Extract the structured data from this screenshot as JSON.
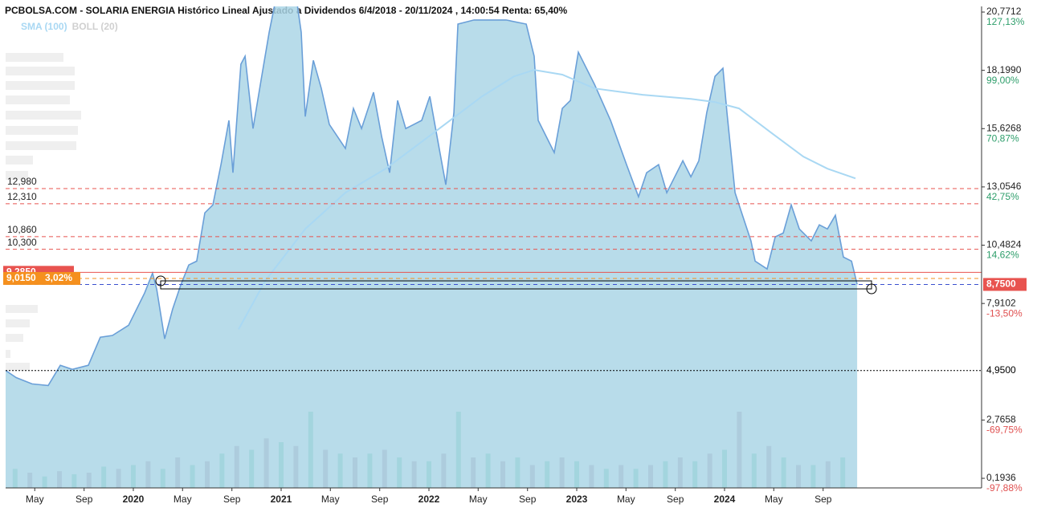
{
  "chart_data": {
    "type": "area",
    "title": "PCBOLSA.COM - SOLARIA ENERGIA Histórico Lineal Ajustado a Dividendos 6/4/2018 - 20/11/2024 , 14:00:54 Renta: 65,40%",
    "xlim": [
      2019.136,
      2025.739
    ],
    "xticks": [
      {
        "value": 2019.333,
        "label": "May"
      },
      {
        "value": 2019.667,
        "label": "Sep"
      },
      2020,
      {
        "value": 2020.333,
        "label": "May"
      },
      {
        "value": 2020.667,
        "label": "Sep"
      },
      2021,
      {
        "value": 2021.333,
        "label": "May"
      },
      {
        "value": 2021.667,
        "label": "Sep"
      },
      2022,
      {
        "value": 2022.333,
        "label": "May"
      },
      {
        "value": 2022.667,
        "label": "Sep"
      },
      2023,
      {
        "value": 2023.333,
        "label": "May"
      },
      {
        "value": 2023.667,
        "label": "Sep"
      },
      2024,
      {
        "value": 2024.333,
        "label": "May"
      },
      {
        "value": 2024.667,
        "label": "Sep"
      }
    ],
    "ylim": [
      -0.23,
      21.02
    ],
    "yticks": [
      {
        "value": 20.7712,
        "label": "20,7712"
      },
      {
        "value": 18.199,
        "label": "18,1990"
      },
      {
        "value": 15.6268,
        "label": "15,6268"
      },
      {
        "value": 13.0546,
        "label": "13,0546"
      },
      {
        "value": 10.4824,
        "label": "10,4824"
      },
      {
        "value": 7.9102,
        "label": "7,9102"
      },
      {
        "value": 2.7658,
        "label": "2,7658"
      },
      {
        "value": 0.1936,
        "label": "0,1936"
      }
    ],
    "y2lim": [
      -102.52,
      129.85
    ],
    "y2ticks": [
      {
        "value": 127.13,
        "label": "127,13%"
      },
      {
        "value": 99.0,
        "label": "99,00%"
      },
      {
        "value": 70.87,
        "label": "70,87%"
      },
      {
        "value": 42.75,
        "label": "42,75%"
      },
      {
        "value": 14.62,
        "label": "14,62%"
      },
      {
        "value": -13.5,
        "label": "-13,50%"
      },
      {
        "value": -69.75,
        "label": "-69,75%"
      },
      {
        "value": -97.88,
        "label": "-97,88%"
      }
    ],
    "series": [
      {
        "color": "#6a9fd8",
        "fill": "#acd6e6",
        "x": [
          2019.136,
          2019.207,
          2019.315,
          2019.424,
          2019.506,
          2019.587,
          2019.696,
          2019.777,
          2019.859,
          2019.968,
          2020.076,
          2020.13,
          2020.158,
          2020.212,
          2020.266,
          2020.321,
          2020.375,
          2020.429,
          2020.484,
          2020.538,
          2020.593,
          2020.647,
          2020.674,
          2020.728,
          2020.756,
          2020.81,
          2020.864,
          2020.919,
          2020.957,
          2021.109,
          2021.136,
          2021.163,
          2021.218,
          2021.272,
          2021.326,
          2021.435,
          2021.489,
          2021.544,
          2021.625,
          2021.68,
          2021.734,
          2021.788,
          2021.843,
          2021.951,
          2022.006,
          2022.06,
          2022.114,
          2022.169,
          2022.196,
          2022.305,
          2022.413,
          2022.522,
          2022.658,
          2022.712,
          2022.739,
          2022.848,
          2022.902,
          2022.957,
          2023.011,
          2023.12,
          2023.229,
          2023.337,
          2023.418,
          2023.473,
          2023.554,
          2023.609,
          2023.718,
          2023.772,
          2023.826,
          2023.88,
          2023.935,
          2023.989,
          2024.016,
          2024.071,
          2024.125,
          2024.179,
          2024.207,
          2024.288,
          2024.343,
          2024.397,
          2024.451,
          2024.506,
          2024.587,
          2024.641,
          2024.696,
          2024.75,
          2024.804,
          2024.859,
          2024.897
        ],
        "values": [
          4.95,
          4.64,
          4.36,
          4.29,
          5.18,
          5.0,
          5.18,
          6.42,
          6.5,
          6.95,
          8.37,
          9.25,
          8.54,
          6.35,
          7.66,
          8.72,
          9.61,
          9.78,
          11.91,
          12.26,
          14.04,
          15.99,
          13.68,
          18.47,
          18.82,
          15.63,
          17.76,
          19.88,
          21.12,
          21.12,
          19.88,
          16.16,
          18.64,
          17.4,
          15.81,
          14.75,
          16.52,
          15.63,
          17.23,
          15.28,
          13.68,
          16.87,
          15.63,
          15.99,
          17.05,
          15.1,
          13.15,
          16.34,
          20.24,
          20.42,
          20.42,
          20.42,
          20.24,
          18.82,
          15.99,
          14.57,
          16.52,
          16.87,
          19.0,
          17.58,
          15.99,
          14.04,
          12.62,
          13.68,
          14.04,
          12.8,
          14.21,
          13.5,
          14.21,
          16.34,
          17.93,
          18.29,
          16.34,
          12.8,
          11.73,
          10.67,
          9.78,
          9.43,
          10.85,
          11.02,
          12.26,
          11.2,
          10.67,
          11.38,
          11.2,
          11.8,
          9.96,
          9.78,
          8.75
        ]
      },
      {
        "name": "SMA (100)",
        "color": "#a9d8f3",
        "x": [
          2020.712,
          2020.892,
          2021.163,
          2021.435,
          2021.707,
          2022.033,
          2022.359,
          2022.576,
          2022.712,
          2022.902,
          2023.12,
          2023.446,
          2023.772,
          2023.935,
          2024.098,
          2024.315,
          2024.533,
          2024.696,
          2024.886
        ],
        "values": [
          6.77,
          8.9,
          11.2,
          12.8,
          13.86,
          15.45,
          17.05,
          17.93,
          18.22,
          18.01,
          17.4,
          17.12,
          16.94,
          16.8,
          16.52,
          15.45,
          14.39,
          13.86,
          13.43
        ]
      },
      {
        "name": "BOLL (20)",
        "color": "#d0d0d0",
        "x": [],
        "values": []
      }
    ],
    "volume": {
      "ylim": [
        0,
        100
      ],
      "colors": [
        "#5cc6a0",
        "#a88399"
      ],
      "x": [
        2019.2,
        2019.3,
        2019.4,
        2019.5,
        2019.6,
        2019.7,
        2019.8,
        2019.9,
        2020.0,
        2020.1,
        2020.2,
        2020.3,
        2020.4,
        2020.5,
        2020.6,
        2020.7,
        2020.8,
        2020.9,
        2021.0,
        2021.1,
        2021.2,
        2021.3,
        2021.4,
        2021.5,
        2021.6,
        2021.7,
        2021.8,
        2021.9,
        2022.0,
        2022.1,
        2022.2,
        2022.3,
        2022.4,
        2022.5,
        2022.6,
        2022.7,
        2022.8,
        2022.9,
        2023.0,
        2023.1,
        2023.2,
        2023.3,
        2023.4,
        2023.5,
        2023.6,
        2023.7,
        2023.8,
        2023.9,
        2024.0,
        2024.1,
        2024.2,
        2024.3,
        2024.4,
        2024.5,
        2024.6,
        2024.7,
        2024.8
      ],
      "values": [
        25,
        20,
        15,
        22,
        18,
        20,
        28,
        25,
        30,
        35,
        25,
        40,
        30,
        35,
        45,
        55,
        50,
        65,
        60,
        55,
        100,
        50,
        45,
        40,
        45,
        50,
        40,
        35,
        35,
        45,
        100,
        40,
        45,
        35,
        40,
        30,
        35,
        40,
        35,
        30,
        25,
        30,
        25,
        30,
        35,
        40,
        35,
        45,
        50,
        100,
        45,
        55,
        40,
        30,
        30,
        35,
        40
      ]
    },
    "levels": [
      {
        "value": 12.98,
        "label": "12,980",
        "color": "#e8534f",
        "style": "dashed",
        "side": "left"
      },
      {
        "value": 12.31,
        "label": "12,310",
        "color": "#e8534f",
        "style": "dashed",
        "side": "left"
      },
      {
        "value": 10.86,
        "label": "10,860",
        "color": "#e8534f",
        "style": "dashed",
        "side": "left"
      },
      {
        "value": 10.3,
        "label": "10,300",
        "color": "#e8534f",
        "style": "dashed",
        "side": "left"
      },
      {
        "value": 9.285,
        "label": "9,2850",
        "color": "#e8534f",
        "style": "solid",
        "side": "left",
        "badge": true
      },
      {
        "value": 9.015,
        "label": "9,0150",
        "change": "3,02%",
        "color": "#f5901e",
        "style": "dashed",
        "side": "left",
        "badge": true
      },
      {
        "value": 8.75,
        "label": "8,7500",
        "color": "#3a4fcf",
        "badge_color": "#e8534f",
        "style": "dashed",
        "side": "right",
        "badge": true
      },
      {
        "value": 4.95,
        "label": "4,9500",
        "color": "#000000",
        "style": "dotted",
        "side": "right"
      }
    ]
  }
}
